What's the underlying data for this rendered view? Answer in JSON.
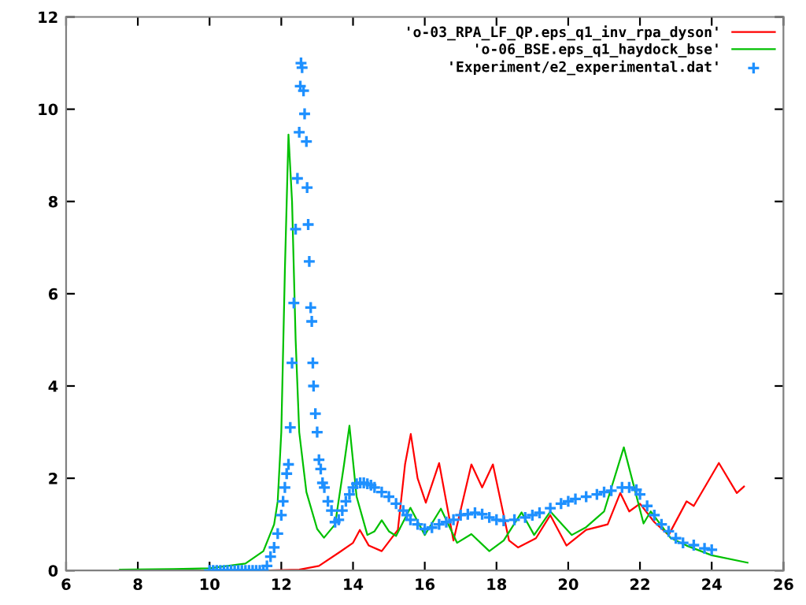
{
  "chart_data": {
    "type": "line",
    "xlim": [
      6,
      26
    ],
    "ylim": [
      0,
      12
    ],
    "xticks": [
      6,
      8,
      10,
      12,
      14,
      16,
      18,
      20,
      22,
      24,
      26
    ],
    "yticks": [
      0,
      2,
      4,
      6,
      8,
      10,
      12
    ],
    "grid": false,
    "legend": "top right",
    "series": [
      {
        "name": "'o-03_RPA_LF_QP.eps_q1_inv_rpa_dyson'",
        "color": "#ff0000",
        "x": [
          10,
          11,
          11.6,
          12.5,
          13.05,
          13.63,
          14.0,
          14.19,
          14.44,
          14.8,
          15.25,
          15.45,
          15.61,
          15.8,
          16.03,
          16.4,
          16.8,
          17.3,
          17.6,
          17.9,
          18.35,
          18.6,
          19.1,
          19.5,
          19.95,
          20.5,
          21.1,
          21.45,
          21.7,
          22.0,
          22.4,
          22.8,
          23.3,
          23.5,
          24.2,
          24.7,
          24.9
        ],
        "values": [
          0,
          0,
          0,
          0.02,
          0.1,
          0.4,
          0.6,
          0.88,
          0.54,
          0.42,
          0.88,
          2.3,
          2.96,
          2.0,
          1.47,
          2.33,
          0.65,
          2.3,
          1.8,
          2.3,
          0.65,
          0.5,
          0.7,
          1.2,
          0.54,
          0.88,
          1.0,
          1.68,
          1.28,
          1.45,
          1.05,
          0.77,
          1.5,
          1.4,
          2.33,
          1.68,
          1.82
        ]
      },
      {
        "name": "'o-06_BSE.eps_q1_haydock_bse'",
        "color": "#00c000",
        "x": [
          7.5,
          9,
          10,
          11,
          11.5,
          11.8,
          11.9,
          12.0,
          12.1,
          12.2,
          12.3,
          12.4,
          12.5,
          12.7,
          13.0,
          13.19,
          13.5,
          13.75,
          13.9,
          14.1,
          14.4,
          14.6,
          14.8,
          15.0,
          15.2,
          15.6,
          16.0,
          16.45,
          16.9,
          17.3,
          17.8,
          18.2,
          18.7,
          19.05,
          19.5,
          20.1,
          20.5,
          21.0,
          21.55,
          22.1,
          22.3,
          22.85,
          23.3,
          24.0,
          25.0
        ],
        "values": [
          0.02,
          0.03,
          0.05,
          0.15,
          0.42,
          1.0,
          1.5,
          3.0,
          6.5,
          9.45,
          8.0,
          5.0,
          3.0,
          1.7,
          0.9,
          0.71,
          1.0,
          2.3,
          3.14,
          1.6,
          0.77,
          0.85,
          1.09,
          0.85,
          0.75,
          1.36,
          0.77,
          1.34,
          0.6,
          0.79,
          0.42,
          0.65,
          1.26,
          0.77,
          1.28,
          0.77,
          0.94,
          1.28,
          2.67,
          1.02,
          1.28,
          0.71,
          0.54,
          0.33,
          0.17
        ]
      },
      {
        "name": "'Experiment/e2_experimental.dat'",
        "color": "#1e90ff",
        "type": "scatter",
        "marker": "cross",
        "x": [
          10,
          10.1,
          10.2,
          10.3,
          10.4,
          10.5,
          10.6,
          10.7,
          10.8,
          10.9,
          11,
          11.1,
          11.2,
          11.3,
          11.4,
          11.5,
          11.6,
          11.7,
          11.8,
          11.9,
          12.0,
          12.05,
          12.1,
          12.15,
          12.2,
          12.25,
          12.3,
          12.35,
          12.4,
          12.45,
          12.5,
          12.53,
          12.55,
          12.58,
          12.62,
          12.65,
          12.7,
          12.72,
          12.75,
          12.78,
          12.82,
          12.85,
          12.88,
          12.9,
          12.95,
          13.0,
          13.05,
          13.1,
          13.15,
          13.2,
          13.3,
          13.4,
          13.5,
          13.6,
          13.7,
          13.8,
          13.9,
          14.0,
          14.1,
          14.2,
          14.3,
          14.4,
          14.5,
          14.6,
          14.8,
          15.0,
          15.2,
          15.4,
          15.5,
          15.6,
          15.8,
          16.0,
          16.2,
          16.4,
          16.6,
          16.8,
          17.0,
          17.2,
          17.4,
          17.6,
          17.8,
          18.0,
          18.2,
          18.5,
          18.8,
          19.0,
          19.2,
          19.5,
          19.8,
          20.0,
          20.2,
          20.5,
          20.8,
          21.0,
          21.2,
          21.5,
          21.7,
          21.9,
          22.0,
          22.2,
          22.4,
          22.6,
          22.8,
          23.0,
          23.2,
          23.5,
          23.8,
          24.0
        ],
        "values": [
          0,
          0,
          0,
          0,
          0,
          0,
          0,
          0,
          0,
          0,
          0,
          0,
          0,
          0,
          0,
          0,
          0.1,
          0.3,
          0.5,
          0.8,
          1.2,
          1.5,
          1.8,
          2.1,
          2.3,
          3.1,
          4.5,
          5.8,
          7.4,
          8.5,
          9.5,
          10.5,
          11.0,
          10.9,
          10.4,
          9.9,
          9.3,
          8.3,
          7.5,
          6.7,
          5.7,
          5.4,
          4.5,
          4.0,
          3.4,
          3.0,
          2.4,
          2.2,
          1.9,
          1.8,
          1.5,
          1.3,
          1.05,
          1.1,
          1.3,
          1.5,
          1.65,
          1.8,
          1.88,
          1.9,
          1.9,
          1.88,
          1.85,
          1.8,
          1.7,
          1.6,
          1.45,
          1.3,
          1.2,
          1.1,
          1.0,
          0.9,
          0.93,
          1.0,
          1.05,
          1.1,
          1.2,
          1.22,
          1.25,
          1.22,
          1.15,
          1.1,
          1.08,
          1.1,
          1.15,
          1.2,
          1.25,
          1.35,
          1.45,
          1.5,
          1.55,
          1.6,
          1.65,
          1.7,
          1.73,
          1.8,
          1.8,
          1.75,
          1.65,
          1.4,
          1.2,
          1.0,
          0.85,
          0.7,
          0.6,
          0.55,
          0.48,
          0.45
        ]
      }
    ]
  }
}
